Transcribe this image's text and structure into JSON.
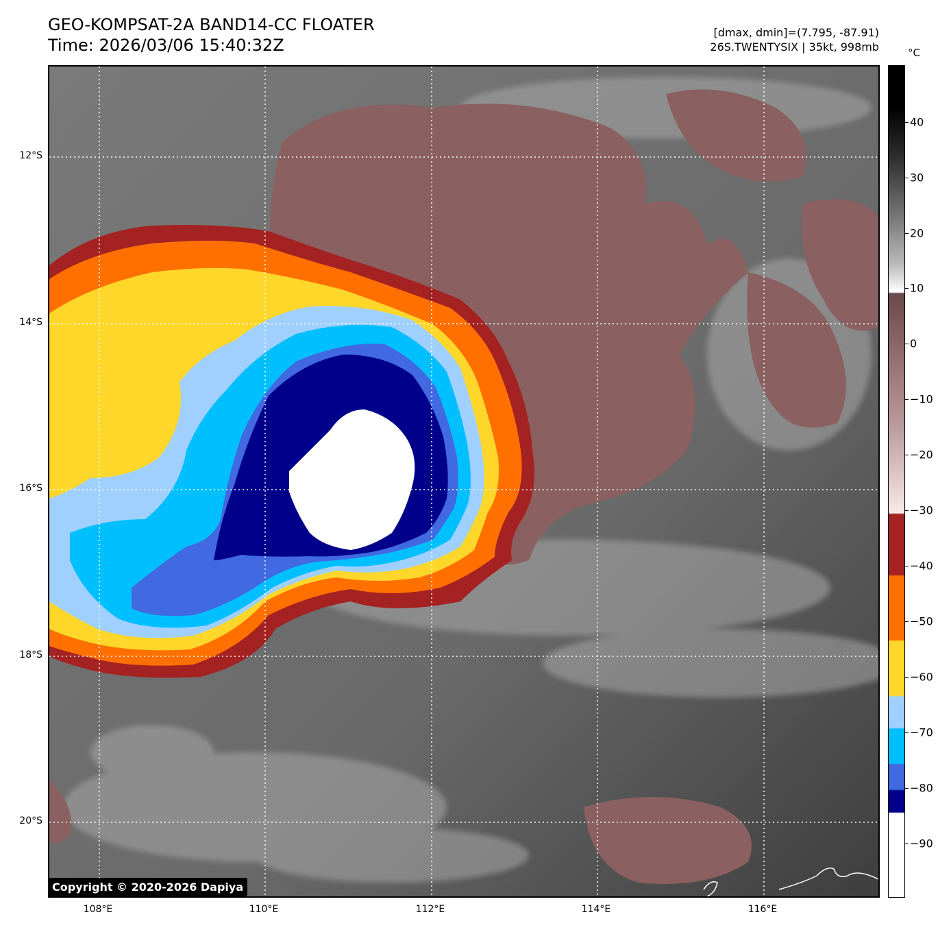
{
  "header": {
    "title_line1": "GEO-KOMPSAT-2A BAND14-CC FLOATER",
    "title_line2": "Time: 2026/03/06 15:40:32Z",
    "info_line1": "[dmax, dmin]=(7.795, -87.91)",
    "info_line2": "26S.TWENTYSIX | 35kt, 998mb"
  },
  "map": {
    "lat_labels": [
      "12°S",
      "14°S",
      "16°S",
      "18°S",
      "20°S"
    ],
    "lon_labels": [
      "108°E",
      "110°E",
      "112°E",
      "114°E",
      "116°E"
    ],
    "gridlines": true,
    "copyright": "Copyright © 2020-2026 Dapiya"
  },
  "colorbar": {
    "unit": "°C",
    "tick_labels": [
      "40",
      "30",
      "20",
      "10",
      "0",
      "−10",
      "−20",
      "−30",
      "−40",
      "−50",
      "−60",
      "−70",
      "−80",
      "−90"
    ],
    "colors": {
      "white_core": "#ffffff",
      "dark_blue": "#00008b",
      "royal_blue": "#4169e1",
      "deep_sky_blue": "#00bfff",
      "light_blue": "#a0d0ff",
      "gold": "#ffd72a",
      "orange": "#ff7000",
      "dark_red": "#a52222",
      "mauve": "#8a6060",
      "light_pink": "#f5dede"
    }
  }
}
